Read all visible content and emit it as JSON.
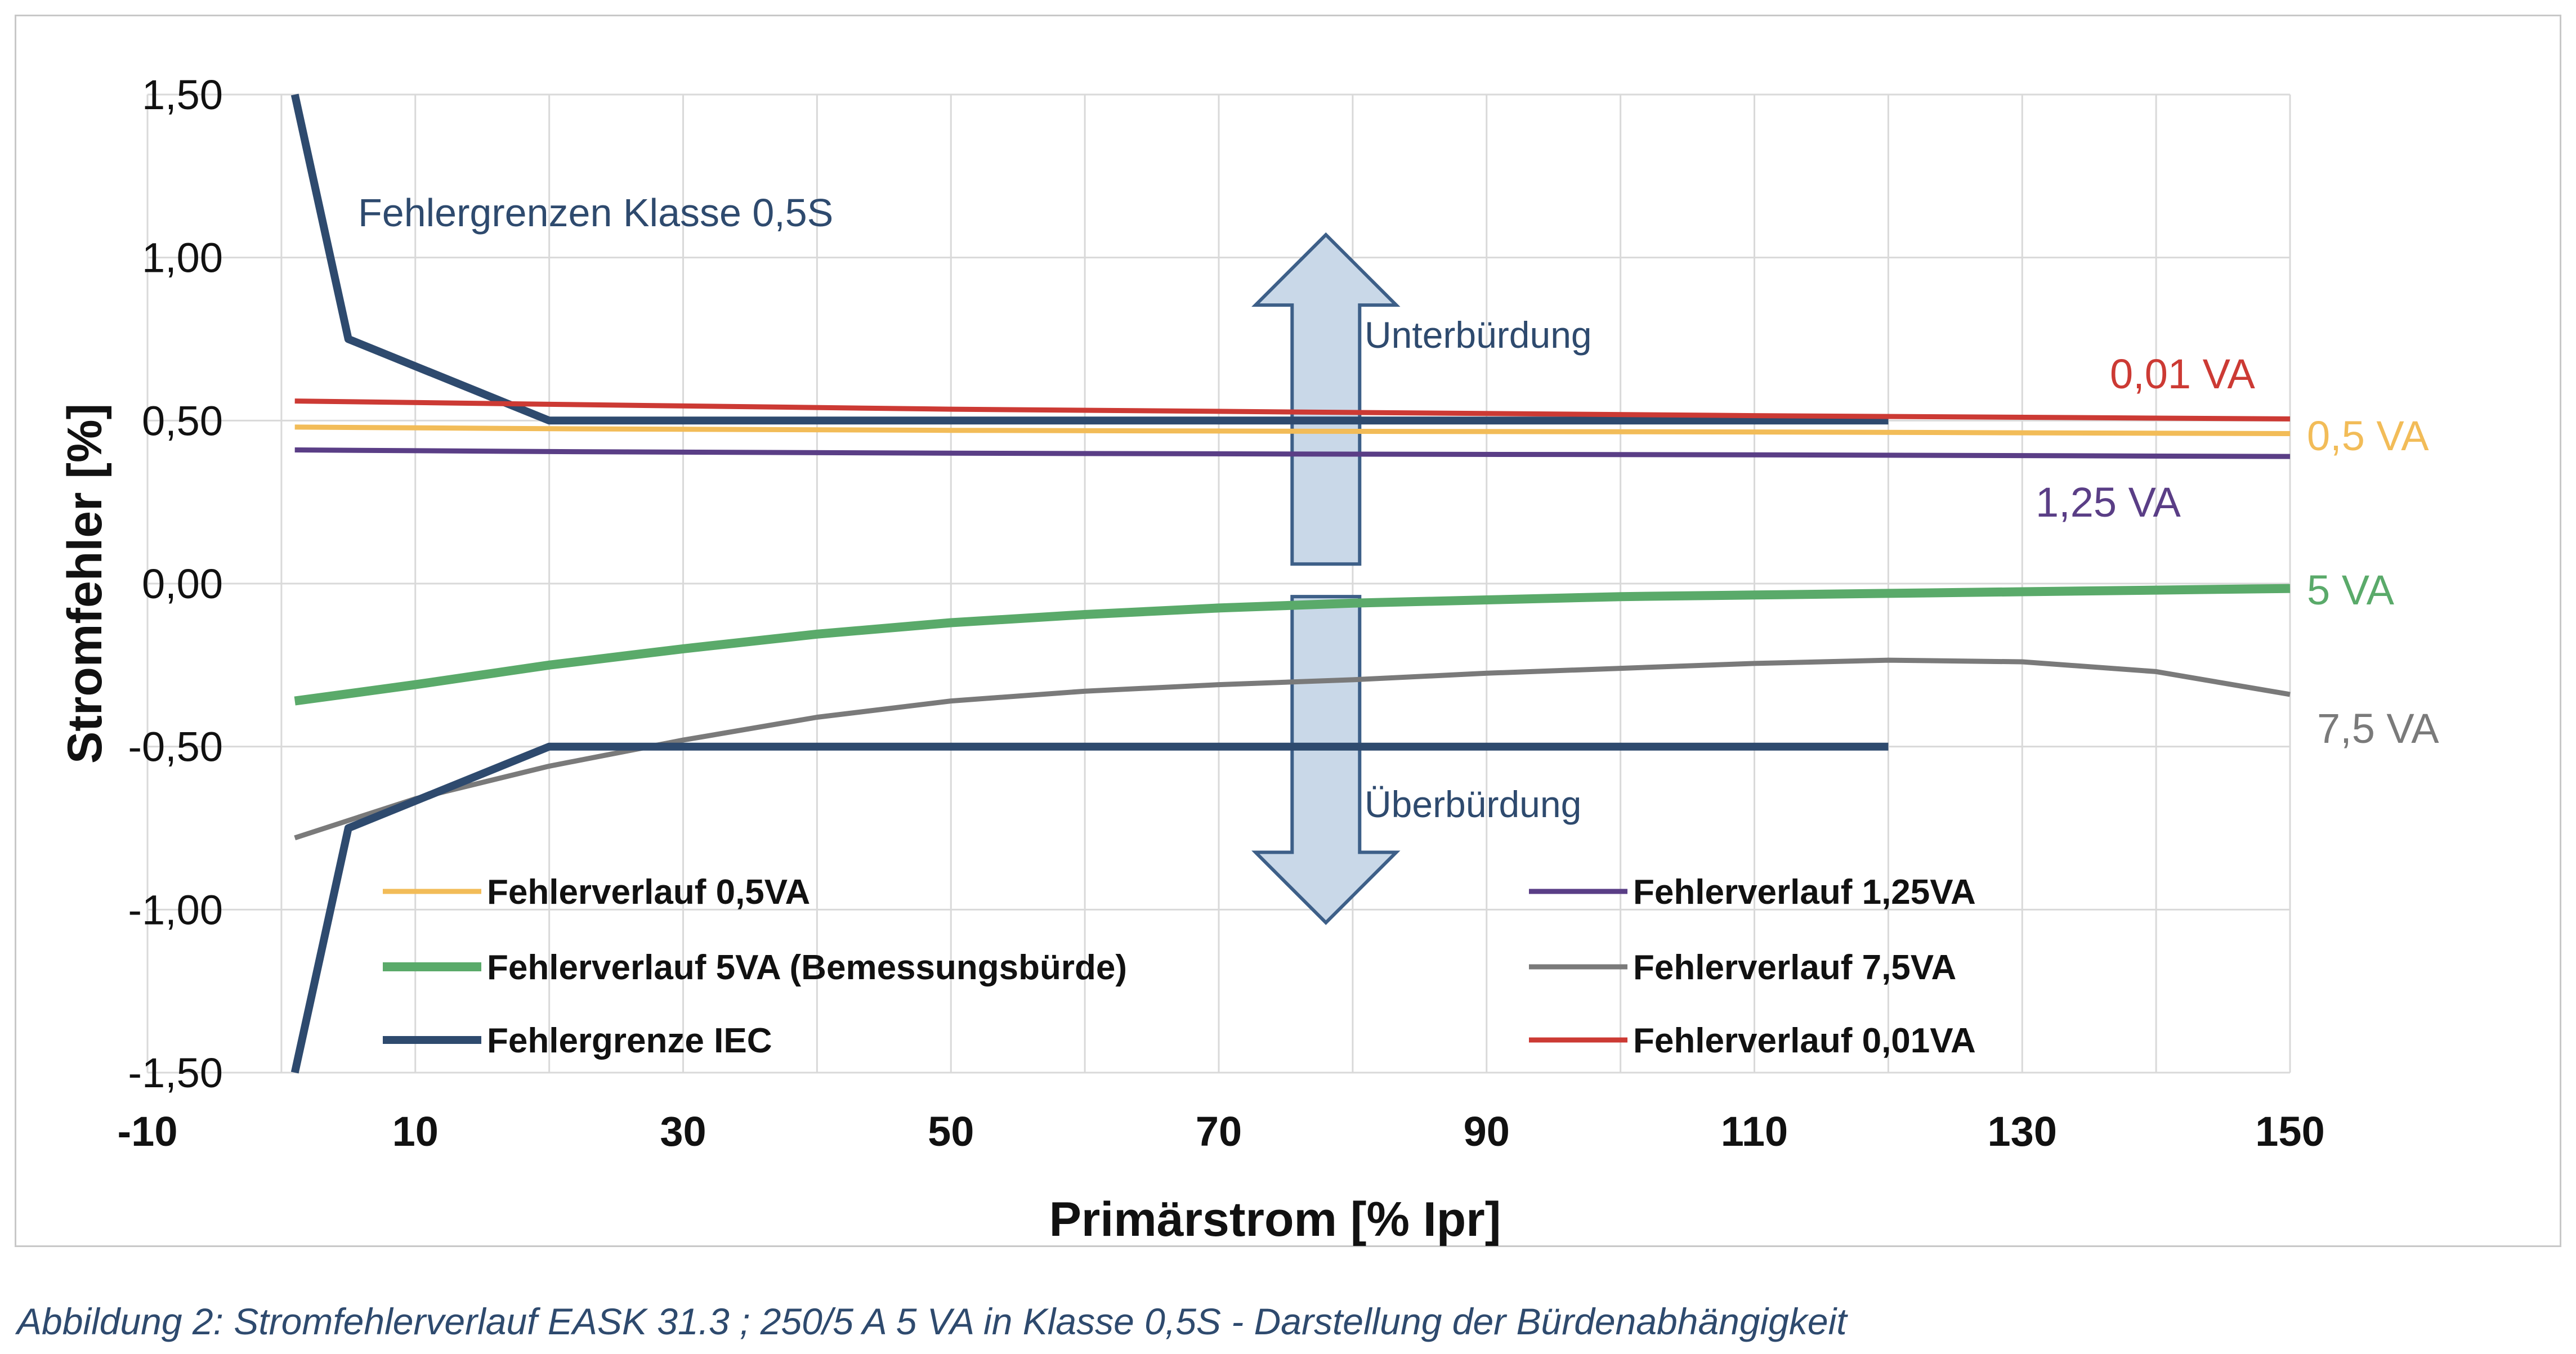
{
  "chart_data": {
    "type": "line",
    "xlabel": "Primärstrom [% Ipr]",
    "ylabel": "Stromfehler [%]",
    "xlim": [
      -10,
      150
    ],
    "ylim": [
      -1.5,
      1.5
    ],
    "x_ticks": [
      "-10",
      "10",
      "30",
      "50",
      "70",
      "90",
      "110",
      "130",
      "150"
    ],
    "y_ticks": [
      "1,50",
      "1,00",
      "0,50",
      "0,00",
      "-0,50",
      "-1,00",
      "-1,50"
    ],
    "grid": "both",
    "legend_placement": "bottom, inside plot",
    "series": [
      {
        "name": "Fehlerverlauf 0,5VA",
        "color": "#f2bc58",
        "width": 9,
        "points": [
          [
            1,
            0.48
          ],
          [
            20,
            0.475
          ],
          [
            50,
            0.47
          ],
          [
            80,
            0.467
          ],
          [
            110,
            0.465
          ],
          [
            150,
            0.46
          ]
        ]
      },
      {
        "name": "Fehlerverlauf 1,25VA",
        "color": "#5a3e86",
        "width": 9,
        "points": [
          [
            1,
            0.41
          ],
          [
            20,
            0.405
          ],
          [
            50,
            0.4
          ],
          [
            80,
            0.397
          ],
          [
            110,
            0.395
          ],
          [
            150,
            0.39
          ]
        ]
      },
      {
        "name": "Fehlerverlauf 5VA (Bemessungsbürde)",
        "color": "#5aaa6a",
        "width": 16,
        "points": [
          [
            1,
            -0.36
          ],
          [
            10,
            -0.31
          ],
          [
            20,
            -0.25
          ],
          [
            30,
            -0.2
          ],
          [
            40,
            -0.155
          ],
          [
            50,
            -0.12
          ],
          [
            60,
            -0.095
          ],
          [
            70,
            -0.075
          ],
          [
            80,
            -0.06
          ],
          [
            90,
            -0.05
          ],
          [
            100,
            -0.04
          ],
          [
            110,
            -0.035
          ],
          [
            120,
            -0.03
          ],
          [
            130,
            -0.025
          ],
          [
            140,
            -0.02
          ],
          [
            150,
            -0.015
          ]
        ]
      },
      {
        "name": "Fehlerverlauf 7,5VA",
        "color": "#7a7a7a",
        "width": 9,
        "points": [
          [
            1,
            -0.78
          ],
          [
            10,
            -0.66
          ],
          [
            20,
            -0.56
          ],
          [
            30,
            -0.48
          ],
          [
            40,
            -0.41
          ],
          [
            50,
            -0.36
          ],
          [
            60,
            -0.33
          ],
          [
            70,
            -0.31
          ],
          [
            80,
            -0.295
          ],
          [
            90,
            -0.275
          ],
          [
            100,
            -0.26
          ],
          [
            110,
            -0.245
          ],
          [
            120,
            -0.235
          ],
          [
            130,
            -0.24
          ],
          [
            140,
            -0.27
          ],
          [
            150,
            -0.34
          ]
        ]
      },
      {
        "name": "Fehlergrenze IEC",
        "color": "#2e4a6e",
        "width": 14,
        "segments": [
          [
            [
              1,
              1.5
            ],
            [
              5,
              0.75
            ],
            [
              20,
              0.5
            ],
            [
              120,
              0.5
            ]
          ],
          [
            [
              1,
              -1.5
            ],
            [
              5,
              -0.75
            ],
            [
              20,
              -0.5
            ],
            [
              120,
              -0.5
            ]
          ]
        ]
      },
      {
        "name": "Fehlerverlauf 0,01VA",
        "color": "#cc3a34",
        "width": 9,
        "points": [
          [
            1,
            0.56
          ],
          [
            20,
            0.55
          ],
          [
            50,
            0.535
          ],
          [
            80,
            0.525
          ],
          [
            110,
            0.515
          ],
          [
            150,
            0.505
          ]
        ]
      }
    ],
    "annotations": {
      "limits": {
        "text": "Fehlergrenzen Klasse 0,5S",
        "color": "#2e4a6e"
      },
      "unter": {
        "text": "Unterbürdung",
        "color": "#2e4a6e"
      },
      "ueber": {
        "text": "Überbürdung",
        "color": "#2e4a6e"
      },
      "end_labels": [
        {
          "text": "0,01 VA",
          "color": "#cc3a34"
        },
        {
          "text": "0,5 VA",
          "color": "#f2bc58"
        },
        {
          "text": "1,25 VA",
          "color": "#5a3e86"
        },
        {
          "text": "5 VA",
          "color": "#5aaa6a"
        },
        {
          "text": "7,5 VA",
          "color": "#7a7a7a"
        }
      ]
    },
    "arrow_colors": {
      "fill": "#c9d8e8",
      "stroke": "#3d5f88"
    }
  },
  "caption": "Abbildung 2: Stromfehlerverlauf EASK 31.3 ; 250/5 A 5 VA in Klasse 0,5S - Darstellung der Bürdenabhängigkeit"
}
